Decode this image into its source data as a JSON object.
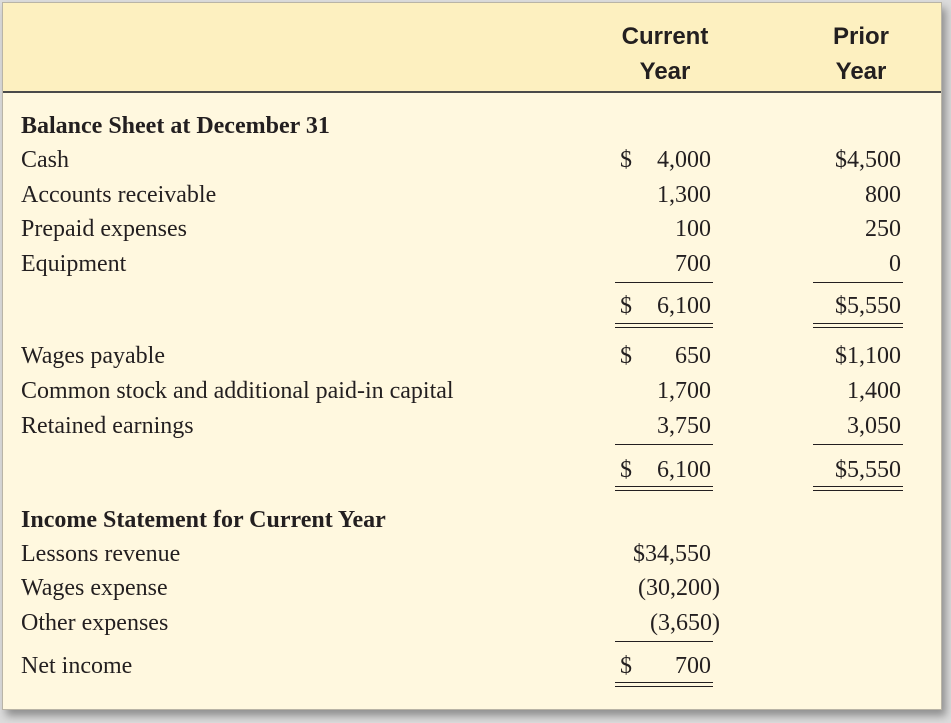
{
  "columns": {
    "current_line1": "Current",
    "current_line2": "Year",
    "prior_line1": "Prior",
    "prior_line2": "Year"
  },
  "balance_sheet": {
    "title": "Balance Sheet at December 31",
    "cash": {
      "label": "Cash",
      "current": "4,000",
      "prior": "$4,500"
    },
    "ar": {
      "label": "Accounts receivable",
      "current": "1,300",
      "prior": "800"
    },
    "prepaid": {
      "label": "Prepaid expenses",
      "current": "100",
      "prior": "250"
    },
    "equipment": {
      "label": "Equipment",
      "current": "700",
      "prior": "0"
    },
    "total_assets": {
      "current": "6,100",
      "prior": "$5,550"
    },
    "wages_payable": {
      "label": "Wages payable",
      "current": "650",
      "prior": "$1,100"
    },
    "common_stock": {
      "label": "Common stock and additional paid-in capital",
      "current": "1,700",
      "prior": "1,400"
    },
    "retained": {
      "label": "Retained earnings",
      "current": "3,750",
      "prior": "3,050"
    },
    "total_le": {
      "current": "6,100",
      "prior": "$5,550"
    }
  },
  "income_statement": {
    "title": "Income Statement for Current Year",
    "revenue": {
      "label": "Lessons revenue",
      "current": "$34,550"
    },
    "wages": {
      "label": "Wages expense",
      "current": "(30,200)"
    },
    "other": {
      "label": "Other expenses",
      "current": "(3,650)"
    },
    "net": {
      "label": "Net income",
      "current": "700"
    }
  },
  "currency_symbol": "$"
}
